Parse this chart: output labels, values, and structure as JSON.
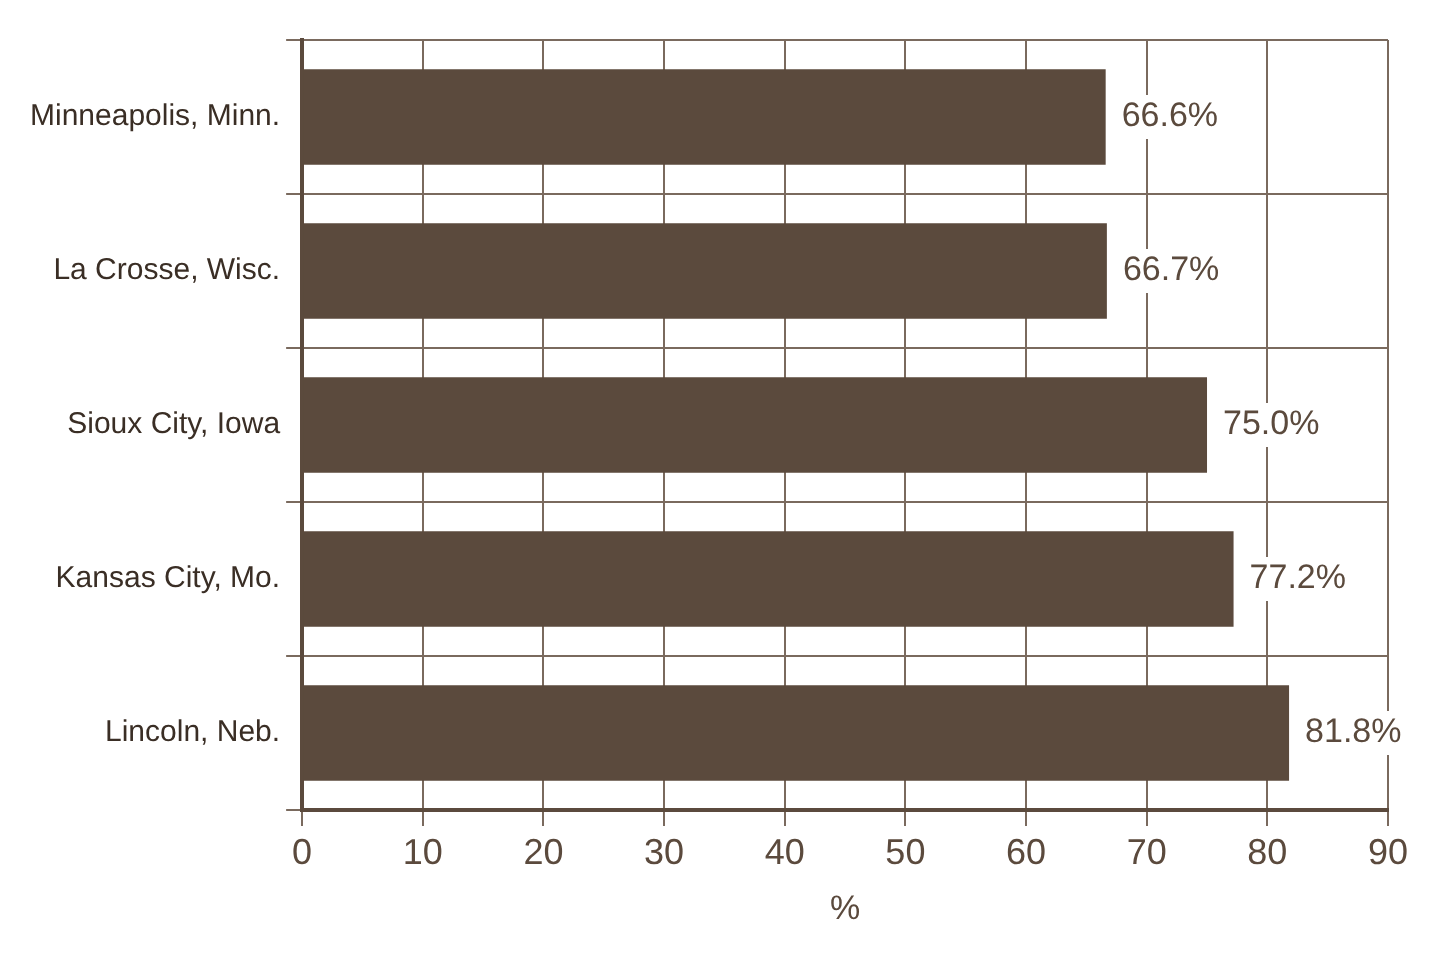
{
  "chart_data": {
    "type": "bar",
    "orientation": "horizontal",
    "categories": [
      "Minneapolis, Minn.",
      "La Crosse, Wisc.",
      "Sioux City, Iowa",
      "Kansas City, Mo.",
      "Lincoln, Neb."
    ],
    "values": [
      66.6,
      66.7,
      75.0,
      77.2,
      81.8
    ],
    "value_labels": [
      "66.6%",
      "66.7%",
      "75.0%",
      "77.2%",
      "81.8%"
    ],
    "color": "#5b4a3d",
    "xlabel": "%",
    "xlim": [
      0,
      90
    ],
    "xticks": [
      0,
      10,
      20,
      30,
      40,
      50,
      60,
      70,
      80,
      90
    ],
    "grid": true,
    "legend": false
  }
}
